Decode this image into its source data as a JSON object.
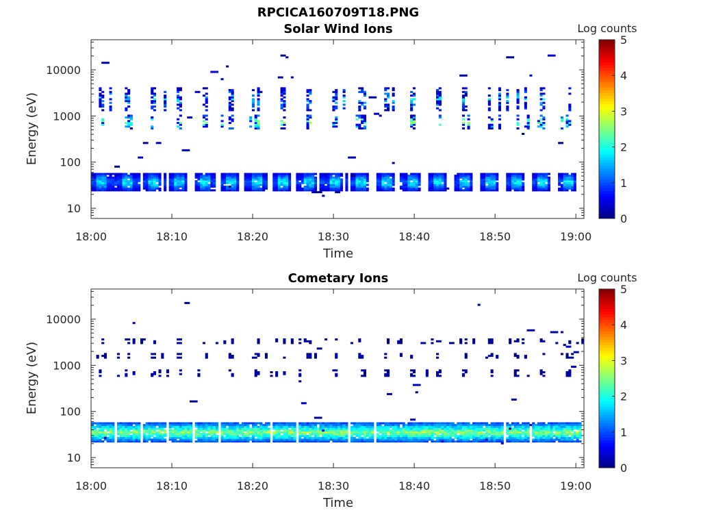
{
  "figure": {
    "filename": "RPCICA160709T18.PNG"
  },
  "chart_data": [
    {
      "type": "heatmap",
      "title": "Solar Wind Ions",
      "xlabel": "Time",
      "ylabel": "Energy (eV)",
      "x_tick_labels": [
        "18:00",
        "18:10",
        "18:20",
        "18:30",
        "18:40",
        "18:50",
        "19:00"
      ],
      "y_tick_labels": [
        "10",
        "100",
        "1000",
        "10000"
      ],
      "y_scale": "log",
      "ylim": [
        6,
        45000
      ],
      "xlim_minutes": [
        0,
        61
      ],
      "colorbar": {
        "label": "Log counts",
        "range": [
          0,
          5
        ],
        "tick_labels": [
          "0",
          "1",
          "2",
          "3",
          "4",
          "5"
        ]
      },
      "description": "Dense band of ions around 25-55 eV with log counts ~1-2; intermittent band near 600-1000 eV peaking ~3; sparse counts 1500-4000 eV and scattered single counts.",
      "bands": [
        {
          "e_lo": 25,
          "e_hi": 55,
          "peak_log_counts": 2.2
        },
        {
          "e_lo": 550,
          "e_hi": 1000,
          "peak_log_counts": 3.0
        },
        {
          "e_lo": 1300,
          "e_hi": 4000,
          "peak_log_counts": 2.0
        }
      ]
    },
    {
      "type": "heatmap",
      "title": "Cometary Ions",
      "xlabel": "Time",
      "ylabel": "Energy (eV)",
      "x_tick_labels": [
        "18:00",
        "18:10",
        "18:20",
        "18:30",
        "18:40",
        "18:50",
        "19:00"
      ],
      "y_tick_labels": [
        "10",
        "100",
        "1000",
        "10000"
      ],
      "y_scale": "log",
      "ylim": [
        6,
        45000
      ],
      "xlim_minutes": [
        0,
        61
      ],
      "colorbar": {
        "label": "Log counts",
        "range": [
          0,
          5
        ],
        "tick_labels": [
          "0",
          "1",
          "2",
          "3",
          "4",
          "5"
        ]
      },
      "description": "Continuous band of ions 22-55 eV peaking ~3 log counts throughout; sparse periodic counts at ~700 eV, ~1600 eV and ~3300 eV.",
      "bands": [
        {
          "e_lo": 22,
          "e_hi": 55,
          "peak_log_counts": 3.0
        },
        {
          "e_lo": 600,
          "e_hi": 800,
          "peak_log_counts": 0.5
        },
        {
          "e_lo": 1500,
          "e_hi": 1800,
          "peak_log_counts": 0.3
        },
        {
          "e_lo": 3000,
          "e_hi": 3600,
          "peak_log_counts": 0.3
        }
      ]
    }
  ]
}
